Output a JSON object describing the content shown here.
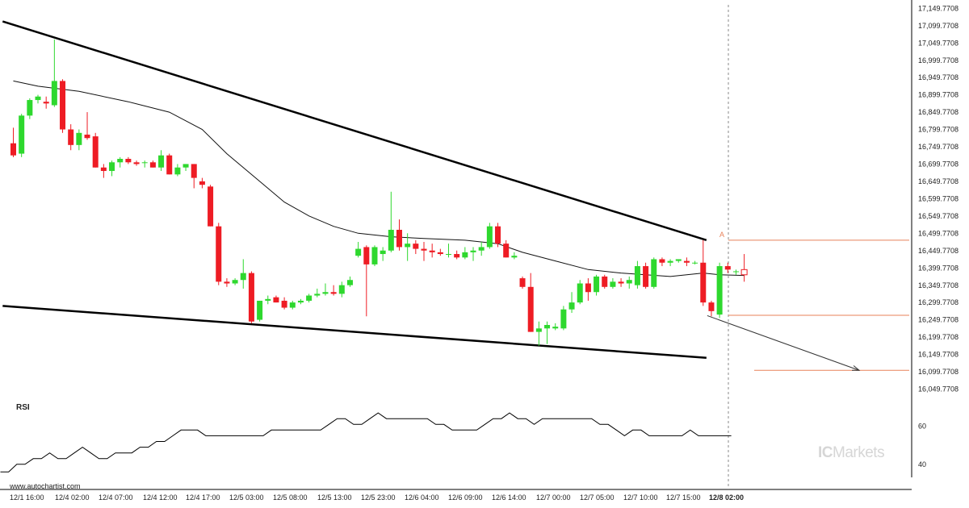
{
  "chart_data": {
    "type": "candlestick",
    "y_axis": {
      "range": [
        16030,
        17160
      ],
      "tick_labels": [
        "17,149.7708",
        "17,099.7708",
        "17,049.7708",
        "16,999.7708",
        "16,949.7708",
        "16,899.7708",
        "16,849.7708",
        "16,799.7708",
        "16,749.7708",
        "16,699.7708",
        "16,649.7708",
        "16,599.7708",
        "16,549.7708",
        "16,499.7708",
        "16,449.7708",
        "16,399.7708",
        "16,349.7708",
        "16,299.7708",
        "16,249.7708",
        "16,199.7708",
        "16,149.7708",
        "16,099.7708",
        "16,049.7708"
      ],
      "tick_values": [
        17149.7708,
        17099.7708,
        17049.7708,
        16999.7708,
        16949.7708,
        16899.7708,
        16849.7708,
        16799.7708,
        16749.7708,
        16699.7708,
        16649.7708,
        16599.7708,
        16549.7708,
        16499.7708,
        16449.7708,
        16399.7708,
        16349.7708,
        16299.7708,
        16249.7708,
        16199.7708,
        16149.7708,
        16099.7708,
        16049.7708
      ]
    },
    "x_axis": {
      "tick_labels": [
        "12/1 16:00",
        "12/4 02:00",
        "12/4 07:00",
        "12/4 12:00",
        "12/4 17:00",
        "12/5 03:00",
        "12/5 08:00",
        "12/5 13:00",
        "12/5 23:00",
        "12/6 04:00",
        "12/6 09:00",
        "12/6 14:00",
        "12/7 00:00",
        "12/7 05:00",
        "12/7 10:00",
        "12/7 15:00",
        "12/8 02:00"
      ],
      "highlighted": "12/8 02:00"
    },
    "candles": [
      [
        16760,
        16805,
        16720,
        16725
      ],
      [
        16730,
        16845,
        16720,
        16840
      ],
      [
        16840,
        16890,
        16830,
        16885
      ],
      [
        16885,
        16900,
        16875,
        16895
      ],
      [
        16880,
        16895,
        16860,
        16875
      ],
      [
        16870,
        17060,
        16865,
        16940
      ],
      [
        16940,
        16945,
        16790,
        16800
      ],
      [
        16800,
        16815,
        16740,
        16755
      ],
      [
        16755,
        16800,
        16740,
        16790
      ],
      [
        16785,
        16850,
        16770,
        16775
      ],
      [
        16780,
        16790,
        16690,
        16690
      ],
      [
        16690,
        16700,
        16660,
        16680
      ],
      [
        16680,
        16710,
        16665,
        16705
      ],
      [
        16705,
        16720,
        16690,
        16715
      ],
      [
        16715,
        16720,
        16700,
        16705
      ],
      [
        16705,
        16710,
        16695,
        16700
      ],
      [
        16705,
        16710,
        16690,
        16705
      ],
      [
        16705,
        16710,
        16690,
        16690
      ],
      [
        16690,
        16740,
        16680,
        16725
      ],
      [
        16725,
        16730,
        16670,
        16670
      ],
      [
        16670,
        16700,
        16665,
        16690
      ],
      [
        16690,
        16700,
        16680,
        16700
      ],
      [
        16700,
        16700,
        16630,
        16660
      ],
      [
        16650,
        16660,
        16630,
        16640
      ],
      [
        16635,
        16640,
        16520,
        16520
      ],
      [
        16520,
        16530,
        16350,
        16360
      ],
      [
        16360,
        16370,
        16345,
        16355
      ],
      [
        16355,
        16370,
        16350,
        16365
      ],
      [
        16365,
        16425,
        16340,
        16385
      ],
      [
        16385,
        16390,
        16240,
        16245
      ],
      [
        16250,
        16305,
        16245,
        16305
      ],
      [
        16305,
        16320,
        16295,
        16310
      ],
      [
        16315,
        16320,
        16300,
        16300
      ],
      [
        16305,
        16315,
        16280,
        16285
      ],
      [
        16285,
        16305,
        16280,
        16300
      ],
      [
        16300,
        16310,
        16295,
        16305
      ],
      [
        16305,
        16325,
        16300,
        16320
      ],
      [
        16320,
        16340,
        16315,
        16325
      ],
      [
        16325,
        16355,
        16320,
        16330
      ],
      [
        16330,
        16350,
        16320,
        16325
      ],
      [
        16325,
        16360,
        16315,
        16350
      ],
      [
        16350,
        16375,
        16345,
        16365
      ],
      [
        16435,
        16475,
        16430,
        16455
      ],
      [
        16460,
        16465,
        16260,
        16410
      ],
      [
        16410,
        16465,
        16405,
        16460
      ],
      [
        16440,
        16460,
        16420,
        16450
      ],
      [
        16450,
        16620,
        16445,
        16510
      ],
      [
        16510,
        16540,
        16450,
        16460
      ],
      [
        16460,
        16500,
        16420,
        16470
      ],
      [
        16470,
        16480,
        16440,
        16455
      ],
      [
        16455,
        16475,
        16420,
        16450
      ],
      [
        16450,
        16470,
        16430,
        16445
      ],
      [
        16445,
        16455,
        16435,
        16440
      ],
      [
        16440,
        16470,
        16430,
        16440
      ],
      [
        16440,
        16450,
        16425,
        16430
      ],
      [
        16430,
        16460,
        16425,
        16445
      ],
      [
        16445,
        16460,
        16420,
        16450
      ],
      [
        16450,
        16475,
        16435,
        16460
      ],
      [
        16460,
        16530,
        16455,
        16520
      ],
      [
        16520,
        16530,
        16460,
        16470
      ],
      [
        16470,
        16480,
        16430,
        16430
      ],
      [
        16430,
        16445,
        16425,
        16435
      ],
      [
        16370,
        16375,
        16340,
        16345
      ],
      [
        16345,
        16385,
        16215,
        16215
      ],
      [
        16215,
        16245,
        16175,
        16225
      ],
      [
        16225,
        16245,
        16180,
        16235
      ],
      [
        16225,
        16240,
        16220,
        16230
      ],
      [
        16225,
        16290,
        16220,
        16280
      ],
      [
        16280,
        16330,
        16270,
        16300
      ],
      [
        16300,
        16365,
        16295,
        16355
      ],
      [
        16355,
        16370,
        16305,
        16330
      ],
      [
        16330,
        16380,
        16320,
        16375
      ],
      [
        16375,
        16380,
        16340,
        16345
      ],
      [
        16345,
        16370,
        16340,
        16360
      ],
      [
        16360,
        16370,
        16345,
        16355
      ],
      [
        16355,
        16375,
        16340,
        16365
      ],
      [
        16350,
        16420,
        16340,
        16405
      ],
      [
        16405,
        16415,
        16340,
        16345
      ],
      [
        16345,
        16430,
        16340,
        16425
      ],
      [
        16425,
        16430,
        16405,
        16415
      ],
      [
        16415,
        16425,
        16405,
        16420
      ],
      [
        16420,
        16425,
        16415,
        16425
      ],
      [
        16420,
        16430,
        16405,
        16415
      ],
      [
        16415,
        16420,
        16410,
        16415
      ],
      [
        16415,
        16480,
        16290,
        16300
      ],
      [
        16300,
        16305,
        16260,
        16275
      ],
      [
        16265,
        16415,
        16255,
        16405
      ],
      [
        16405,
        16415,
        16385,
        16395
      ],
      [
        16390,
        16395,
        16380,
        16390
      ],
      [
        16395,
        16440,
        16360,
        16380
      ]
    ],
    "moving_average": [
      [
        0,
        16940
      ],
      [
        3,
        16925
      ],
      [
        8,
        16910
      ],
      [
        14,
        16880
      ],
      [
        19,
        16850
      ],
      [
        23,
        16800
      ],
      [
        26,
        16730
      ],
      [
        30,
        16650
      ],
      [
        33,
        16590
      ],
      [
        36,
        16550
      ],
      [
        39,
        16520
      ],
      [
        42,
        16500
      ],
      [
        46,
        16490
      ],
      [
        50,
        16485
      ],
      [
        55,
        16480
      ],
      [
        59,
        16470
      ],
      [
        62,
        16445
      ],
      [
        66,
        16420
      ],
      [
        70,
        16395
      ],
      [
        74,
        16385
      ],
      [
        80,
        16375
      ],
      [
        84,
        16385
      ],
      [
        86,
        16380
      ],
      [
        89,
        16378
      ]
    ],
    "pattern": {
      "upper_line": [
        [
          -1.3,
          17112
        ],
        [
          84.4,
          16480
        ]
      ],
      "lower_line": [
        [
          -1.3,
          16290
        ],
        [
          84.4,
          16140
        ]
      ],
      "support_level": 16263,
      "resistance_level": 16480,
      "target_level": 16104,
      "projection": [
        [
          84.5,
          16262
        ],
        [
          103,
          16104
        ]
      ],
      "point_label": "A"
    },
    "rsi": {
      "title": "RSI",
      "y_range": [
        34,
        70
      ],
      "tick_labels": [
        "60",
        "40"
      ],
      "tick_values": [
        60,
        40
      ],
      "values": [
        36,
        36,
        40,
        40,
        43,
        43,
        46,
        43,
        43,
        46,
        49,
        46,
        43,
        43,
        46,
        46,
        46,
        49,
        49,
        52,
        52,
        55,
        58,
        58,
        58,
        55,
        55,
        55,
        55,
        55,
        55,
        55,
        55,
        58,
        58,
        58,
        58,
        58,
        58,
        58,
        61,
        64,
        64,
        61,
        61,
        64,
        67,
        64,
        64,
        64,
        64,
        64,
        64,
        61,
        61,
        58,
        58,
        58,
        58,
        61,
        64,
        64,
        67,
        64,
        64,
        61,
        64,
        64,
        64,
        64,
        64,
        64,
        64,
        61,
        61,
        58,
        55,
        58,
        58,
        55,
        55,
        55,
        55,
        55,
        58,
        55,
        55,
        55,
        55,
        55
      ]
    }
  },
  "footer": {
    "watermark": "www.autochartist.com",
    "brand_prefix": "IC",
    "brand_suffix": "Markets"
  },
  "colors": {
    "bull": "#2ed82e",
    "bear": "#ee1c24",
    "trendline": "#000000",
    "level": "#e8825a",
    "grid_line": "#888888"
  }
}
